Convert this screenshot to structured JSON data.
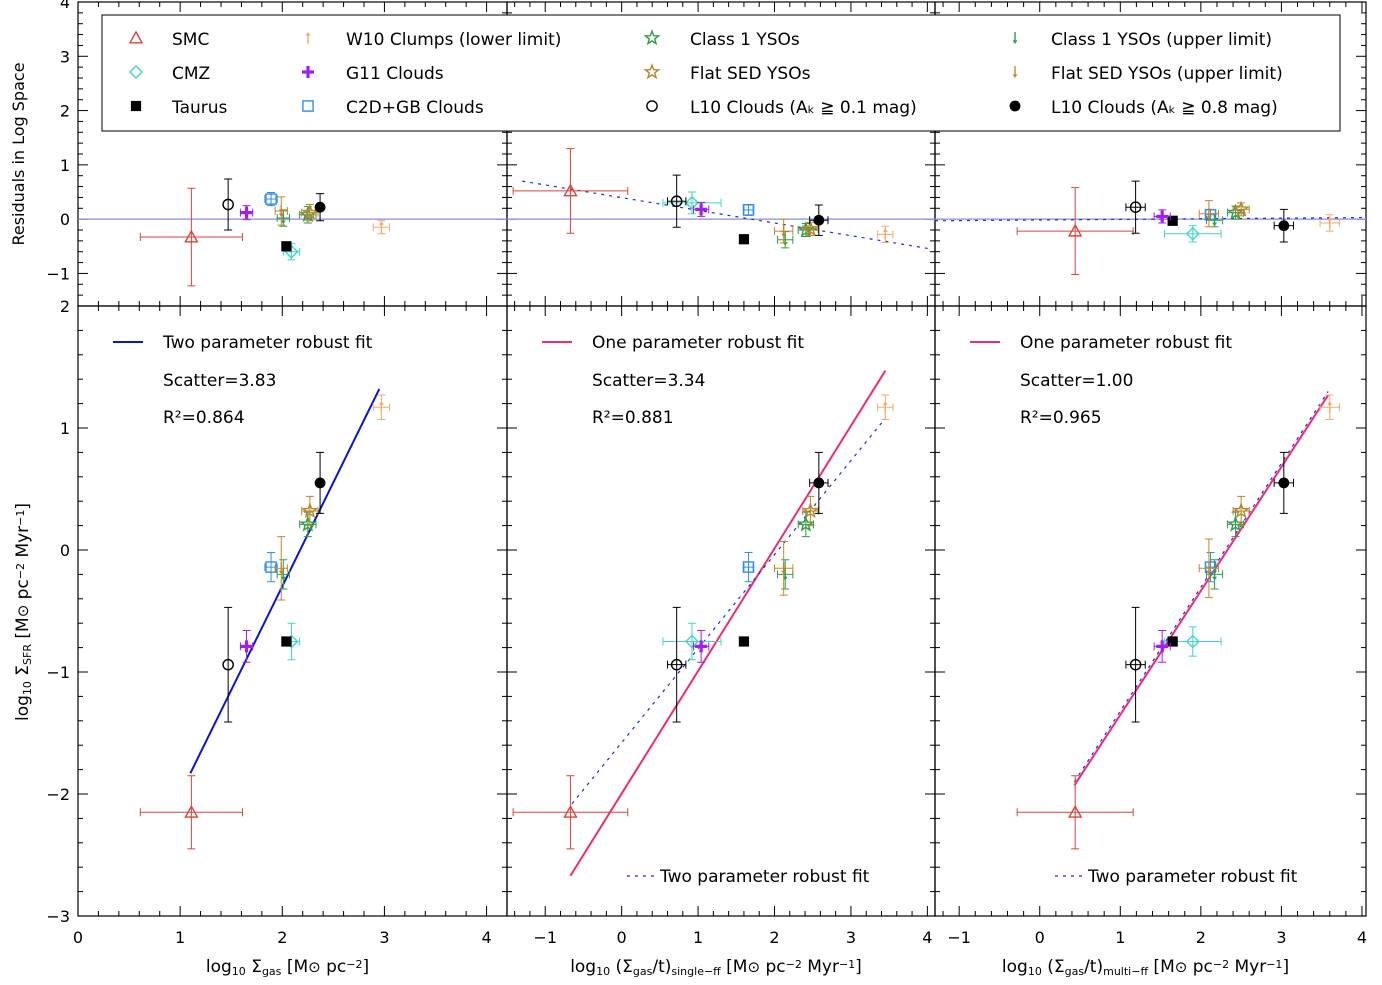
{
  "chart_data": {
    "type": "scatter",
    "legend": {
      "placement": "top",
      "entries": [
        {
          "key": "smc",
          "label": "SMC",
          "marker": "triangle",
          "color": "#d9453a"
        },
        {
          "key": "cmz",
          "label": "CMZ",
          "marker": "diamond",
          "color": "#3fd6c6"
        },
        {
          "key": "taurus",
          "label": "Taurus",
          "marker": "square-filled",
          "color": "#000000"
        },
        {
          "key": "w10",
          "label": "W10 Clumps (lower limit)",
          "marker": "arrow-up",
          "color": "#f5a96a"
        },
        {
          "key": "g11",
          "label": "G11 Clouds",
          "marker": "plus",
          "color": "#a020f0"
        },
        {
          "key": "c2d",
          "label": "C2D+GB Clouds",
          "marker": "square-open",
          "color": "#2f8fe8"
        },
        {
          "key": "class1",
          "label": "Class 1 YSOs",
          "marker": "star",
          "color": "#2e9d4a"
        },
        {
          "key": "flat",
          "label": "Flat SED YSOs",
          "marker": "star",
          "color": "#b8862a"
        },
        {
          "key": "l10a",
          "label": "L10 Clouds (Aₖ ≧ 0.1 mag)",
          "marker": "circle-open",
          "color": "#000000"
        },
        {
          "key": "class1u",
          "label": "Class 1 YSOs (upper limit)",
          "marker": "arrow-down",
          "color": "#2e9d4a"
        },
        {
          "key": "flatu",
          "label": "Flat SED YSOs (upper limit)",
          "marker": "arrow-down",
          "color": "#c8862a"
        },
        {
          "key": "l10b",
          "label": "L10 Clouds (Aₖ ≧ 0.8 mag)",
          "marker": "circle-filled",
          "color": "#000000"
        }
      ]
    },
    "residual_ylabel": "Residuals in Log Space",
    "residual_yticks": [
      -1,
      0,
      1,
      2,
      3,
      4
    ],
    "residual_ylim": [
      -1.6,
      4
    ],
    "main_ylabel_parts": [
      "log",
      "10",
      " Σ",
      "SFR",
      " [M",
      "⊙",
      " pc",
      "−2",
      " Myr",
      "−1",
      "]"
    ],
    "main_yticks": [
      -3,
      -2,
      -1,
      0,
      1,
      2
    ],
    "main_ylim": [
      -3,
      2
    ],
    "panels": [
      {
        "id": "a",
        "xlim": [
          0,
          4.2
        ],
        "xticks": [
          0,
          1,
          2,
          3,
          4
        ],
        "xlabel_parts": [
          "log",
          "10",
          " Σ",
          "gas",
          " [M",
          "⊙",
          " pc",
          "−2",
          "]"
        ],
        "fit_label": "Two parameter robust fit",
        "fit_color": "#0a14d2",
        "scatter_text": "Scatter=3.83",
        "r2_text": "R²=0.864",
        "fit_line": [
          [
            1.1,
            -1.83
          ],
          [
            2.95,
            1.32
          ]
        ],
        "dashed_fit_label": "",
        "dashed_line": [],
        "residual_dashed_line": [],
        "points": [
          {
            "key": "smc",
            "x": 1.11,
            "y": -2.15,
            "xerr": [
              0.5,
              0.5
            ],
            "yerr": [
              0.3,
              0.3
            ],
            "res": -0.33,
            "reserr": [
              0.9,
              0.9
            ]
          },
          {
            "key": "cmz",
            "x": 2.09,
            "y": -0.75,
            "xerr": [
              0.08,
              0.08
            ],
            "yerr": [
              0.15,
              0.15
            ],
            "res": -0.6,
            "reserr": [
              0.15,
              0.15
            ]
          },
          {
            "key": "taurus",
            "x": 2.04,
            "y": -0.75,
            "xerr": [
              0,
              0
            ],
            "yerr": [
              0,
              0
            ],
            "res": -0.5,
            "reserr": [
              0,
              0
            ]
          },
          {
            "key": "w10",
            "x": 2.97,
            "y": 1.17,
            "xerr": [
              0.08,
              0.08
            ],
            "yerr": [
              0.1,
              0.1
            ],
            "res": -0.15,
            "reserr": [
              0.12,
              0.12
            ]
          },
          {
            "key": "g11",
            "x": 1.65,
            "y": -0.79,
            "xerr": [
              0.06,
              0.06
            ],
            "yerr": [
              0.13,
              0.13
            ],
            "res": 0.12,
            "reserr": [
              0.13,
              0.13
            ]
          },
          {
            "key": "c2d",
            "x": 1.89,
            "y": -0.14,
            "xerr": [
              0.06,
              0.06
            ],
            "yerr": [
              0.12,
              0.12
            ],
            "res": 0.37,
            "reserr": [
              0.12,
              0.12
            ]
          },
          {
            "key": "class1",
            "x": 2.25,
            "y": 0.21,
            "xerr": [
              0.08,
              0.08
            ],
            "yerr": [
              0.1,
              0.1
            ],
            "res": 0.08,
            "reserr": [
              0.15,
              0.15
            ]
          },
          {
            "key": "flat",
            "x": 2.27,
            "y": 0.32,
            "xerr": [
              0.08,
              0.08
            ],
            "yerr": [
              0.12,
              0.12
            ],
            "res": 0.12,
            "reserr": [
              0.15,
              0.15
            ]
          },
          {
            "key": "l10a",
            "x": 1.47,
            "y": -0.94,
            "xerr": [
              0,
              0
            ],
            "yerr": [
              0.47,
              0.47
            ],
            "res": 0.27,
            "reserr": [
              0.47,
              0.47
            ]
          },
          {
            "key": "class1u",
            "x": 2.01,
            "y": -0.2,
            "xerr": [
              0.06,
              0.06
            ],
            "yerr": [
              0.12,
              0.12
            ],
            "res": 0.02,
            "reserr": [
              0.15,
              0.15
            ]
          },
          {
            "key": "flatu",
            "x": 1.99,
            "y": -0.15,
            "xerr": [
              0.06,
              0.06
            ],
            "yerr": [
              0.26,
              0.26
            ],
            "res": 0.15,
            "reserr": [
              0.26,
              0.26
            ]
          },
          {
            "key": "l10b",
            "x": 2.37,
            "y": 0.55,
            "xerr": [
              0,
              0
            ],
            "yerr": [
              0.25,
              0.25
            ],
            "res": 0.22,
            "reserr": [
              0.25,
              0.25
            ]
          }
        ]
      },
      {
        "id": "b",
        "xlim": [
          -1.5,
          4.1
        ],
        "xticks": [
          -1,
          0,
          1,
          2,
          3,
          4
        ],
        "xlabel_parts": [
          "log",
          "10",
          " (Σ",
          "gas",
          "/t)",
          "single−ff",
          " [M",
          "⊙",
          " pc",
          "−2",
          " Myr",
          "−1",
          "]"
        ],
        "fit_label": "One parameter robust fit",
        "fit_color": "#ee2a7b",
        "scatter_text": "Scatter=3.34",
        "r2_text": "R²=0.881",
        "fit_line": [
          [
            -0.67,
            -2.67
          ],
          [
            3.45,
            1.47
          ]
        ],
        "dashed_fit_label": "Two parameter robust fit",
        "dashed_line": [
          [
            -0.65,
            -2.08
          ],
          [
            3.45,
            1.08
          ]
        ],
        "residual_dashed_line": [
          [
            -1.3,
            0.7
          ],
          [
            4.05,
            -0.55
          ]
        ],
        "points": [
          {
            "key": "smc",
            "x": -0.67,
            "y": -2.15,
            "xerr": [
              0.75,
              0.75
            ],
            "yerr": [
              0.3,
              0.3
            ],
            "res": 0.52,
            "reserr": [
              0.78,
              0.78
            ]
          },
          {
            "key": "cmz",
            "x": 0.92,
            "y": -0.75,
            "xerr": [
              0.38,
              0.38
            ],
            "yerr": [
              0.15,
              0.15
            ],
            "res": 0.3,
            "reserr": [
              0.2,
              0.2
            ]
          },
          {
            "key": "taurus",
            "x": 1.6,
            "y": -0.75,
            "xerr": [
              0,
              0
            ],
            "yerr": [
              0,
              0
            ],
            "res": -0.37,
            "reserr": [
              0,
              0
            ]
          },
          {
            "key": "w10",
            "x": 3.45,
            "y": 1.17,
            "xerr": [
              0.1,
              0.1
            ],
            "yerr": [
              0.1,
              0.1
            ],
            "res": -0.28,
            "reserr": [
              0.15,
              0.15
            ]
          },
          {
            "key": "g11",
            "x": 1.04,
            "y": -0.79,
            "xerr": [
              0.1,
              0.1
            ],
            "yerr": [
              0.13,
              0.13
            ],
            "res": 0.18,
            "reserr": [
              0.13,
              0.13
            ]
          },
          {
            "key": "c2d",
            "x": 1.66,
            "y": -0.14,
            "xerr": [
              0.06,
              0.06
            ],
            "yerr": [
              0.12,
              0.12
            ],
            "res": 0.17,
            "reserr": [
              0.1,
              0.1
            ]
          },
          {
            "key": "class1",
            "x": 2.41,
            "y": 0.21,
            "xerr": [
              0.1,
              0.1
            ],
            "yerr": [
              0.1,
              0.1
            ],
            "res": -0.2,
            "reserr": [
              0.12,
              0.12
            ]
          },
          {
            "key": "flat",
            "x": 2.47,
            "y": 0.32,
            "xerr": [
              0.1,
              0.1
            ],
            "yerr": [
              0.12,
              0.12
            ],
            "res": -0.18,
            "reserr": [
              0.12,
              0.12
            ]
          },
          {
            "key": "l10a",
            "x": 0.72,
            "y": -0.94,
            "xerr": [
              0.12,
              0.12
            ],
            "yerr": [
              0.47,
              0.47
            ],
            "res": 0.33,
            "reserr": [
              0.48,
              0.48
            ]
          },
          {
            "key": "class1u",
            "x": 2.14,
            "y": -0.2,
            "xerr": [
              0.1,
              0.1
            ],
            "yerr": [
              0.12,
              0.12
            ],
            "res": -0.38,
            "reserr": [
              0.15,
              0.15
            ]
          },
          {
            "key": "flatu",
            "x": 2.12,
            "y": -0.15,
            "xerr": [
              0.12,
              0.12
            ],
            "yerr": [
              0.22,
              0.22
            ],
            "res": -0.22,
            "reserr": [
              0.22,
              0.22
            ]
          },
          {
            "key": "l10b",
            "x": 2.58,
            "y": 0.55,
            "xerr": [
              0.12,
              0.12
            ],
            "yerr": [
              0.25,
              0.25
            ],
            "res": -0.02,
            "reserr": [
              0.28,
              0.28
            ]
          }
        ]
      },
      {
        "id": "c",
        "xlim": [
          -1.3,
          4.05
        ],
        "xticks": [
          -1,
          0,
          1,
          2,
          3,
          4
        ],
        "xlabel_parts": [
          "log",
          "10",
          " (Σ",
          "gas",
          "/t)",
          "multi−ff",
          " [M",
          "⊙",
          " pc",
          "−2",
          " Myr",
          "−1",
          "]"
        ],
        "fit_label": "One parameter robust fit",
        "fit_color": "#ee2a7b",
        "scatter_text": "Scatter=1.00",
        "r2_text": "R²=0.965",
        "fit_line": [
          [
            0.43,
            -1.93
          ],
          [
            3.58,
            1.27
          ]
        ],
        "dashed_fit_label": "Two parameter robust fit",
        "dashed_line": [
          [
            0.43,
            -1.9
          ],
          [
            3.58,
            1.3
          ]
        ],
        "residual_dashed_line": [
          [
            -1.3,
            -0.03
          ],
          [
            4.05,
            0.03
          ]
        ],
        "points": [
          {
            "key": "smc",
            "x": 0.44,
            "y": -2.15,
            "xerr": [
              0.72,
              0.72
            ],
            "yerr": [
              0.3,
              0.3
            ],
            "res": -0.22,
            "reserr": [
              0.8,
              0.8
            ]
          },
          {
            "key": "cmz",
            "x": 1.9,
            "y": -0.75,
            "xerr": [
              0.35,
              0.35
            ],
            "yerr": [
              0.12,
              0.12
            ],
            "res": -0.27,
            "reserr": [
              0.15,
              0.15
            ]
          },
          {
            "key": "taurus",
            "x": 1.65,
            "y": -0.75,
            "xerr": [
              0,
              0
            ],
            "yerr": [
              0,
              0
            ],
            "res": -0.03,
            "reserr": [
              0,
              0
            ]
          },
          {
            "key": "w10",
            "x": 3.6,
            "y": 1.17,
            "xerr": [
              0.12,
              0.12
            ],
            "yerr": [
              0.1,
              0.1
            ],
            "res": -0.07,
            "reserr": [
              0.15,
              0.15
            ]
          },
          {
            "key": "g11",
            "x": 1.52,
            "y": -0.79,
            "xerr": [
              0.1,
              0.1
            ],
            "yerr": [
              0.13,
              0.13
            ],
            "res": 0.05,
            "reserr": [
              0.12,
              0.12
            ]
          },
          {
            "key": "c2d",
            "x": 2.12,
            "y": -0.14,
            "xerr": [
              0.06,
              0.06
            ],
            "yerr": [
              0.12,
              0.12
            ],
            "res": 0.08,
            "reserr": [
              0.1,
              0.1
            ]
          },
          {
            "key": "class1",
            "x": 2.43,
            "y": 0.21,
            "xerr": [
              0.1,
              0.1
            ],
            "yerr": [
              0.1,
              0.1
            ],
            "res": 0.12,
            "reserr": [
              0.12,
              0.12
            ]
          },
          {
            "key": "flat",
            "x": 2.5,
            "y": 0.32,
            "xerr": [
              0.1,
              0.1
            ],
            "yerr": [
              0.12,
              0.12
            ],
            "res": 0.18,
            "reserr": [
              0.12,
              0.12
            ]
          },
          {
            "key": "l10a",
            "x": 1.19,
            "y": -0.94,
            "xerr": [
              0.12,
              0.12
            ],
            "yerr": [
              0.47,
              0.47
            ],
            "res": 0.22,
            "reserr": [
              0.48,
              0.48
            ]
          },
          {
            "key": "class1u",
            "x": 2.17,
            "y": -0.2,
            "xerr": [
              0.1,
              0.1
            ],
            "yerr": [
              0.12,
              0.12
            ],
            "res": -0.02,
            "reserr": [
              0.12,
              0.12
            ]
          },
          {
            "key": "flatu",
            "x": 2.1,
            "y": -0.15,
            "xerr": [
              0.12,
              0.12
            ],
            "yerr": [
              0.24,
              0.24
            ],
            "res": 0.1,
            "reserr": [
              0.24,
              0.24
            ]
          },
          {
            "key": "l10b",
            "x": 3.03,
            "y": 0.55,
            "xerr": [
              0.12,
              0.12
            ],
            "yerr": [
              0.25,
              0.25
            ],
            "res": -0.12,
            "reserr": [
              0.3,
              0.3
            ]
          }
        ]
      }
    ]
  }
}
